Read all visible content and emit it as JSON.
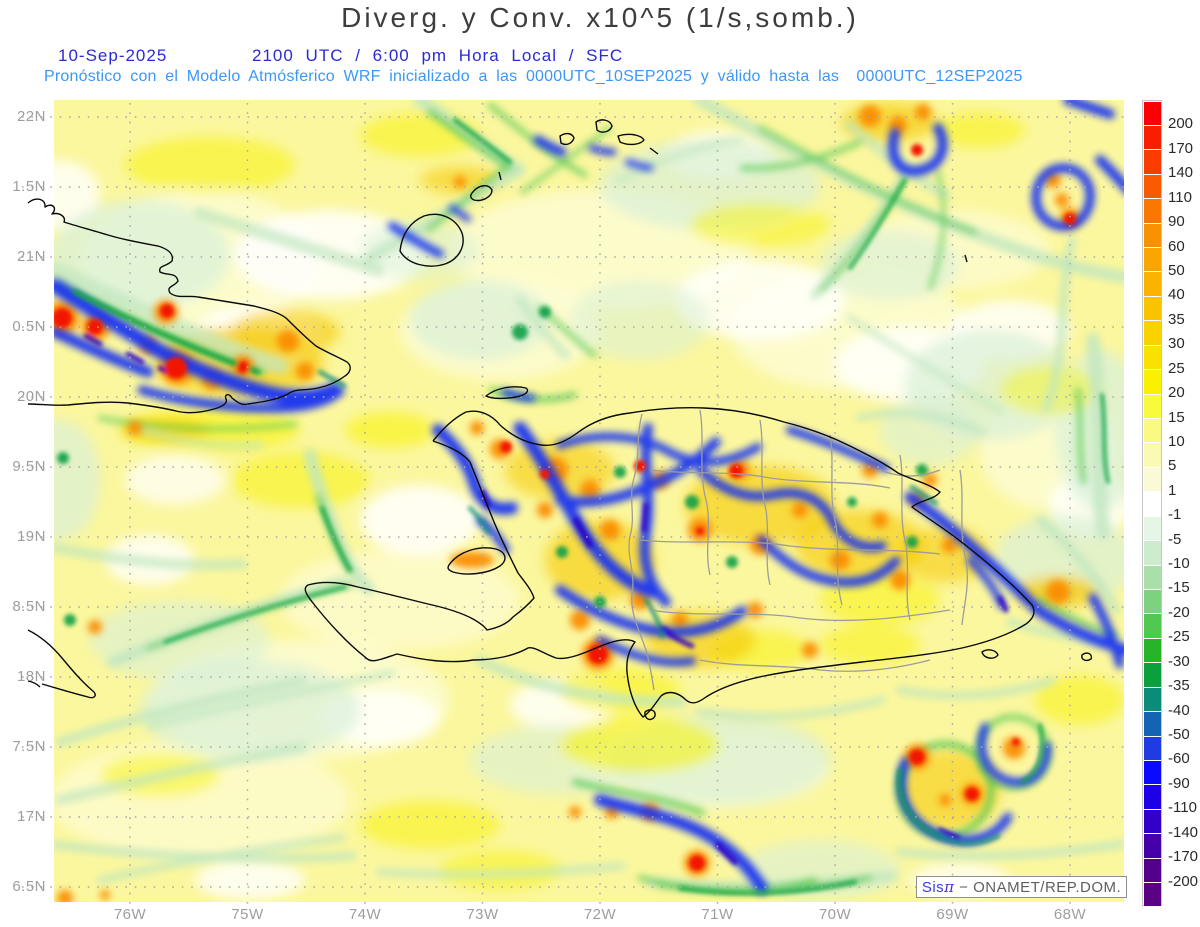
{
  "title": "Diverg. y Conv. x10^5 (1/s,somb.)",
  "header": {
    "date": "10-Sep-2025",
    "time": "2100 UTC / 6:00 pm Hora Local / SFC",
    "forecast_line": "Pronóstico con el Modelo Atmósferico WRF inicializado a las 0000UTC_10SEP2025 y válido hasta las  0000UTC_12SEP2025"
  },
  "map": {
    "lat_labels": [
      "22N",
      "1.5N",
      "21N",
      "0.5N",
      "20N",
      "9.5N",
      "19N",
      "8.5N",
      "18N",
      "7.5N",
      "17N",
      "6.5N"
    ],
    "lon_labels": [
      "76W",
      "75W",
      "74W",
      "73W",
      "72W",
      "71W",
      "70W",
      "69W",
      "68W"
    ]
  },
  "colorbar": {
    "tick_labels": [
      "200",
      "170",
      "140",
      "110",
      "90",
      "60",
      "50",
      "40",
      "35",
      "30",
      "25",
      "20",
      "15",
      "10",
      "5",
      "1",
      "-1",
      "-5",
      "-10",
      "-15",
      "-20",
      "-25",
      "-30",
      "-35",
      "-40",
      "-50",
      "-60",
      "-90",
      "-110",
      "-140",
      "-170",
      "-200"
    ],
    "colors": [
      "#fa0000",
      "#fa1e00",
      "#fa3c00",
      "#fa5a00",
      "#fa7800",
      "#fa9100",
      "#faa500",
      "#fab400",
      "#fac300",
      "#fad200",
      "#fae100",
      "#faf000",
      "#fafa3c",
      "#fafa82",
      "#fafab4",
      "#fafad7",
      "#ffffff",
      "#e6f6e6",
      "#cdeccd",
      "#a9e0a9",
      "#7dd37d",
      "#50c850",
      "#28b428",
      "#0aa03c",
      "#0a8c78",
      "#1464b4",
      "#1e3ce1",
      "#0a0aff",
      "#1e00e6",
      "#3200c8",
      "#4600aa",
      "#55008c",
      "#5a0082"
    ]
  },
  "attribution": {
    "brand": "Sis",
    "pi": "π",
    "rest": " − ONAMET/REP.DOM."
  }
}
